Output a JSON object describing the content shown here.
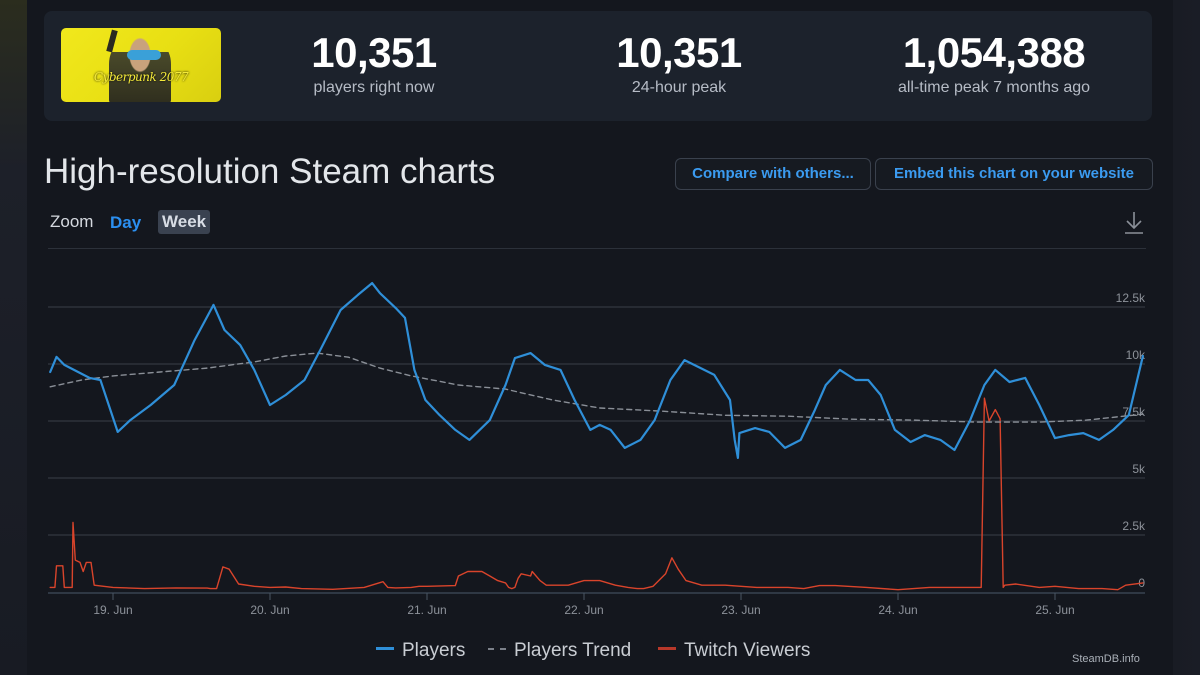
{
  "stats": {
    "game_thumbnail": "Cyberpunk 2077",
    "current": {
      "value": "10,351",
      "label": "players right now"
    },
    "peak_24h": {
      "value": "10,351",
      "label": "24-hour peak"
    },
    "all_time": {
      "value": "1,054,388",
      "label": "all-time peak 7 months ago"
    }
  },
  "header": {
    "title": "High-resolution Steam charts",
    "compare_button": "Compare with others...",
    "embed_button": "Embed this chart on your website"
  },
  "zoom": {
    "label": "Zoom",
    "options": [
      "Day",
      "Week"
    ],
    "selected": "Week"
  },
  "icons": {
    "download": "download-icon"
  },
  "colors": {
    "players": "#2f8fd8",
    "trend": "#8a8f97",
    "twitch": "#d9442b",
    "accent": "#2b8ff0"
  },
  "credit": "SteamDB.info",
  "chart_data": {
    "type": "line",
    "title": "High-resolution Steam charts",
    "xlabel": "",
    "ylabel": "",
    "x_unit": "days since 19 Jun 00:00",
    "xlim": [
      -0.41,
      6.56
    ],
    "ylim": [
      0,
      14000
    ],
    "yticks": [
      0,
      2500,
      5000,
      7500,
      10000,
      12500
    ],
    "ytick_labels": [
      "0",
      "2.5k",
      "5k",
      "7.5k",
      "10k",
      "12.5k"
    ],
    "xticks": [
      0,
      1,
      2,
      3,
      4,
      5,
      6
    ],
    "xtick_labels": [
      "19. Jun",
      "20. Jun",
      "21. Jun",
      "22. Jun",
      "23. Jun",
      "24. Jun",
      "25. Jun"
    ],
    "grid": true,
    "legend": {
      "position": "bottom-center",
      "entries": [
        "Players",
        "Players Trend",
        "Twitch Viewers"
      ]
    },
    "series": [
      {
        "name": "Players",
        "style": "solid",
        "x": [
          -0.4,
          -0.36,
          -0.31,
          -0.15,
          -0.08,
          0.03,
          0.11,
          0.24,
          0.39,
          0.52,
          0.64,
          0.71,
          0.81,
          0.9,
          1.0,
          1.1,
          1.22,
          1.32,
          1.45,
          1.56,
          1.65,
          1.7,
          1.8,
          1.86,
          1.92,
          1.99,
          2.08,
          2.18,
          2.27,
          2.4,
          2.5,
          2.56,
          2.66,
          2.75,
          2.85,
          2.94,
          3.04,
          3.1,
          3.17,
          3.26,
          3.36,
          3.45,
          3.55,
          3.64,
          3.74,
          3.83,
          3.93,
          3.96,
          3.98,
          3.99,
          4.09,
          4.18,
          4.28,
          4.38,
          4.47,
          4.54,
          4.63,
          4.73,
          4.81,
          4.89,
          4.98,
          5.08,
          5.17,
          5.27,
          5.36,
          5.46,
          5.55,
          5.62,
          5.71,
          5.81,
          5.9,
          6.0,
          6.09,
          6.18,
          6.28,
          6.37,
          6.47,
          6.56
        ],
        "y": [
          9650,
          10310,
          9960,
          9390,
          9300,
          7020,
          7540,
          8200,
          9080,
          11050,
          12590,
          11490,
          10830,
          9740,
          8200,
          8640,
          9300,
          10610,
          12370,
          13030,
          13550,
          13110,
          12460,
          12020,
          9740,
          8420,
          7760,
          7110,
          6670,
          7540,
          9080,
          10260,
          10480,
          9960,
          9740,
          8420,
          7110,
          7330,
          7110,
          6320,
          6670,
          7540,
          9300,
          10170,
          9830,
          9520,
          8420,
          6670,
          5880,
          6970,
          7190,
          7020,
          6320,
          6670,
          7980,
          9080,
          9740,
          9300,
          9300,
          8640,
          7110,
          6580,
          6880,
          6670,
          6230,
          7540,
          9080,
          9740,
          9210,
          9390,
          8200,
          6750,
          6880,
          6970,
          6670,
          7110,
          7760,
          10350
        ]
      },
      {
        "name": "Players Trend",
        "style": "dashed",
        "x": [
          -0.4,
          -0.2,
          0.0,
          0.3,
          0.6,
          0.9,
          1.1,
          1.3,
          1.5,
          1.7,
          1.9,
          2.2,
          2.5,
          2.8,
          3.1,
          3.5,
          3.9,
          4.3,
          4.7,
          5.1,
          5.5,
          5.9,
          6.2,
          6.56
        ],
        "y": [
          9000,
          9300,
          9480,
          9650,
          9820,
          10090,
          10350,
          10480,
          10300,
          9820,
          9480,
          9080,
          8900,
          8420,
          8070,
          7930,
          7750,
          7710,
          7580,
          7540,
          7450,
          7450,
          7540,
          7800
        ]
      },
      {
        "name": "Twitch Viewers",
        "style": "solid",
        "x": [
          -0.4,
          -0.37,
          -0.36,
          -0.32,
          -0.31,
          -0.28,
          -0.26,
          -0.255,
          -0.24,
          -0.21,
          -0.19,
          -0.17,
          -0.14,
          -0.12,
          0.0,
          0.2,
          0.4,
          0.6,
          0.62,
          0.66,
          0.7,
          0.74,
          0.8,
          0.9,
          1.0,
          1.1,
          1.2,
          1.4,
          1.6,
          1.72,
          1.75,
          1.8,
          1.9,
          1.95,
          2.0,
          2.18,
          2.2,
          2.26,
          2.35,
          2.4,
          2.45,
          2.5,
          2.52,
          2.54,
          2.56,
          2.58,
          2.6,
          2.66,
          2.67,
          2.72,
          2.76,
          2.9,
          3.0,
          3.1,
          3.2,
          3.28,
          3.34,
          3.38,
          3.44,
          3.52,
          3.56,
          3.6,
          3.65,
          3.75,
          3.9,
          4.1,
          4.3,
          4.4,
          4.5,
          4.6,
          4.8,
          5.0,
          5.2,
          5.4,
          5.52,
          5.53,
          5.55,
          5.58,
          5.62,
          5.65,
          5.67,
          5.68,
          5.75,
          5.9,
          6.0,
          6.15,
          6.3,
          6.4,
          6.45,
          6.56
        ],
        "y": [
          200,
          200,
          1150,
          1150,
          200,
          200,
          200,
          3050,
          1400,
          1300,
          900,
          1300,
          1300,
          300,
          200,
          150,
          180,
          170,
          150,
          150,
          1100,
          1000,
          350,
          250,
          200,
          220,
          150,
          120,
          200,
          450,
          200,
          180,
          200,
          250,
          250,
          280,
          700,
          900,
          900,
          700,
          500,
          400,
          200,
          150,
          200,
          600,
          800,
          700,
          900,
          500,
          300,
          300,
          500,
          500,
          300,
          200,
          150,
          150,
          250,
          800,
          1500,
          1000,
          500,
          300,
          300,
          200,
          200,
          150,
          280,
          280,
          200,
          100,
          200,
          200,
          200,
          200,
          8500,
          7500,
          8000,
          7600,
          200,
          300,
          350,
          200,
          250,
          150,
          150,
          100,
          300,
          400
        ]
      }
    ]
  }
}
